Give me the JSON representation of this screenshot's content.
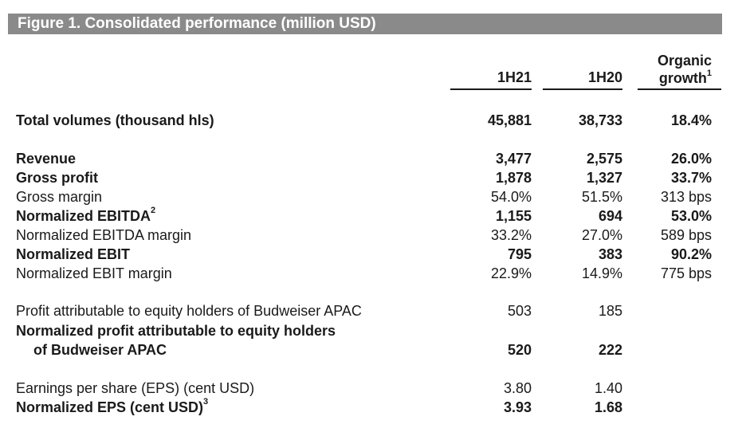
{
  "title": "Figure 1. Consolidated performance (million USD)",
  "columns": {
    "c1": "1H21",
    "c2": "1H20",
    "c3_line1": "Organic",
    "c3_line2": "growth",
    "c3_note": "1"
  },
  "rows": [
    {
      "label": "Total volumes (thousand hls)",
      "note": "",
      "v1": "45,881",
      "v2": "38,733",
      "v3": "18.4%"
    },
    {
      "label": "Revenue",
      "note": "",
      "v1": "3,477",
      "v2": "2,575",
      "v3": "26.0%"
    },
    {
      "label": "Gross profit",
      "note": "",
      "v1": "1,878",
      "v2": "1,327",
      "v3": "33.7%"
    },
    {
      "label": "Gross margin",
      "note": "",
      "v1": "54.0%",
      "v2": "51.5%",
      "v3": "313 bps"
    },
    {
      "label": "Normalized EBITDA",
      "note": "2",
      "v1": "1,155",
      "v2": "694",
      "v3": "53.0%"
    },
    {
      "label": "Normalized EBITDA margin",
      "note": "",
      "v1": "33.2%",
      "v2": "27.0%",
      "v3": "589 bps"
    },
    {
      "label": "Normalized EBIT",
      "note": "",
      "v1": "795",
      "v2": "383",
      "v3": "90.2%"
    },
    {
      "label": "Normalized EBIT margin",
      "note": "",
      "v1": "22.9%",
      "v2": "14.9%",
      "v3": "775 bps"
    },
    {
      "label": "Profit attributable to equity holders of Budweiser APAC",
      "note": "",
      "v1": "503",
      "v2": "185",
      "v3": ""
    },
    {
      "label": "Normalized profit attributable to equity holders",
      "note": "",
      "v1": "",
      "v2": "",
      "v3": ""
    },
    {
      "label": "of Budweiser APAC",
      "note": "",
      "v1": "520",
      "v2": "222",
      "v3": ""
    },
    {
      "label": "Earnings per share (EPS) (cent USD)",
      "note": "",
      "v1": "3.80",
      "v2": "1.40",
      "v3": ""
    },
    {
      "label": "Normalized EPS (cent USD)",
      "note": "3",
      "v1": "3.93",
      "v2": "1.68",
      "v3": ""
    }
  ]
}
